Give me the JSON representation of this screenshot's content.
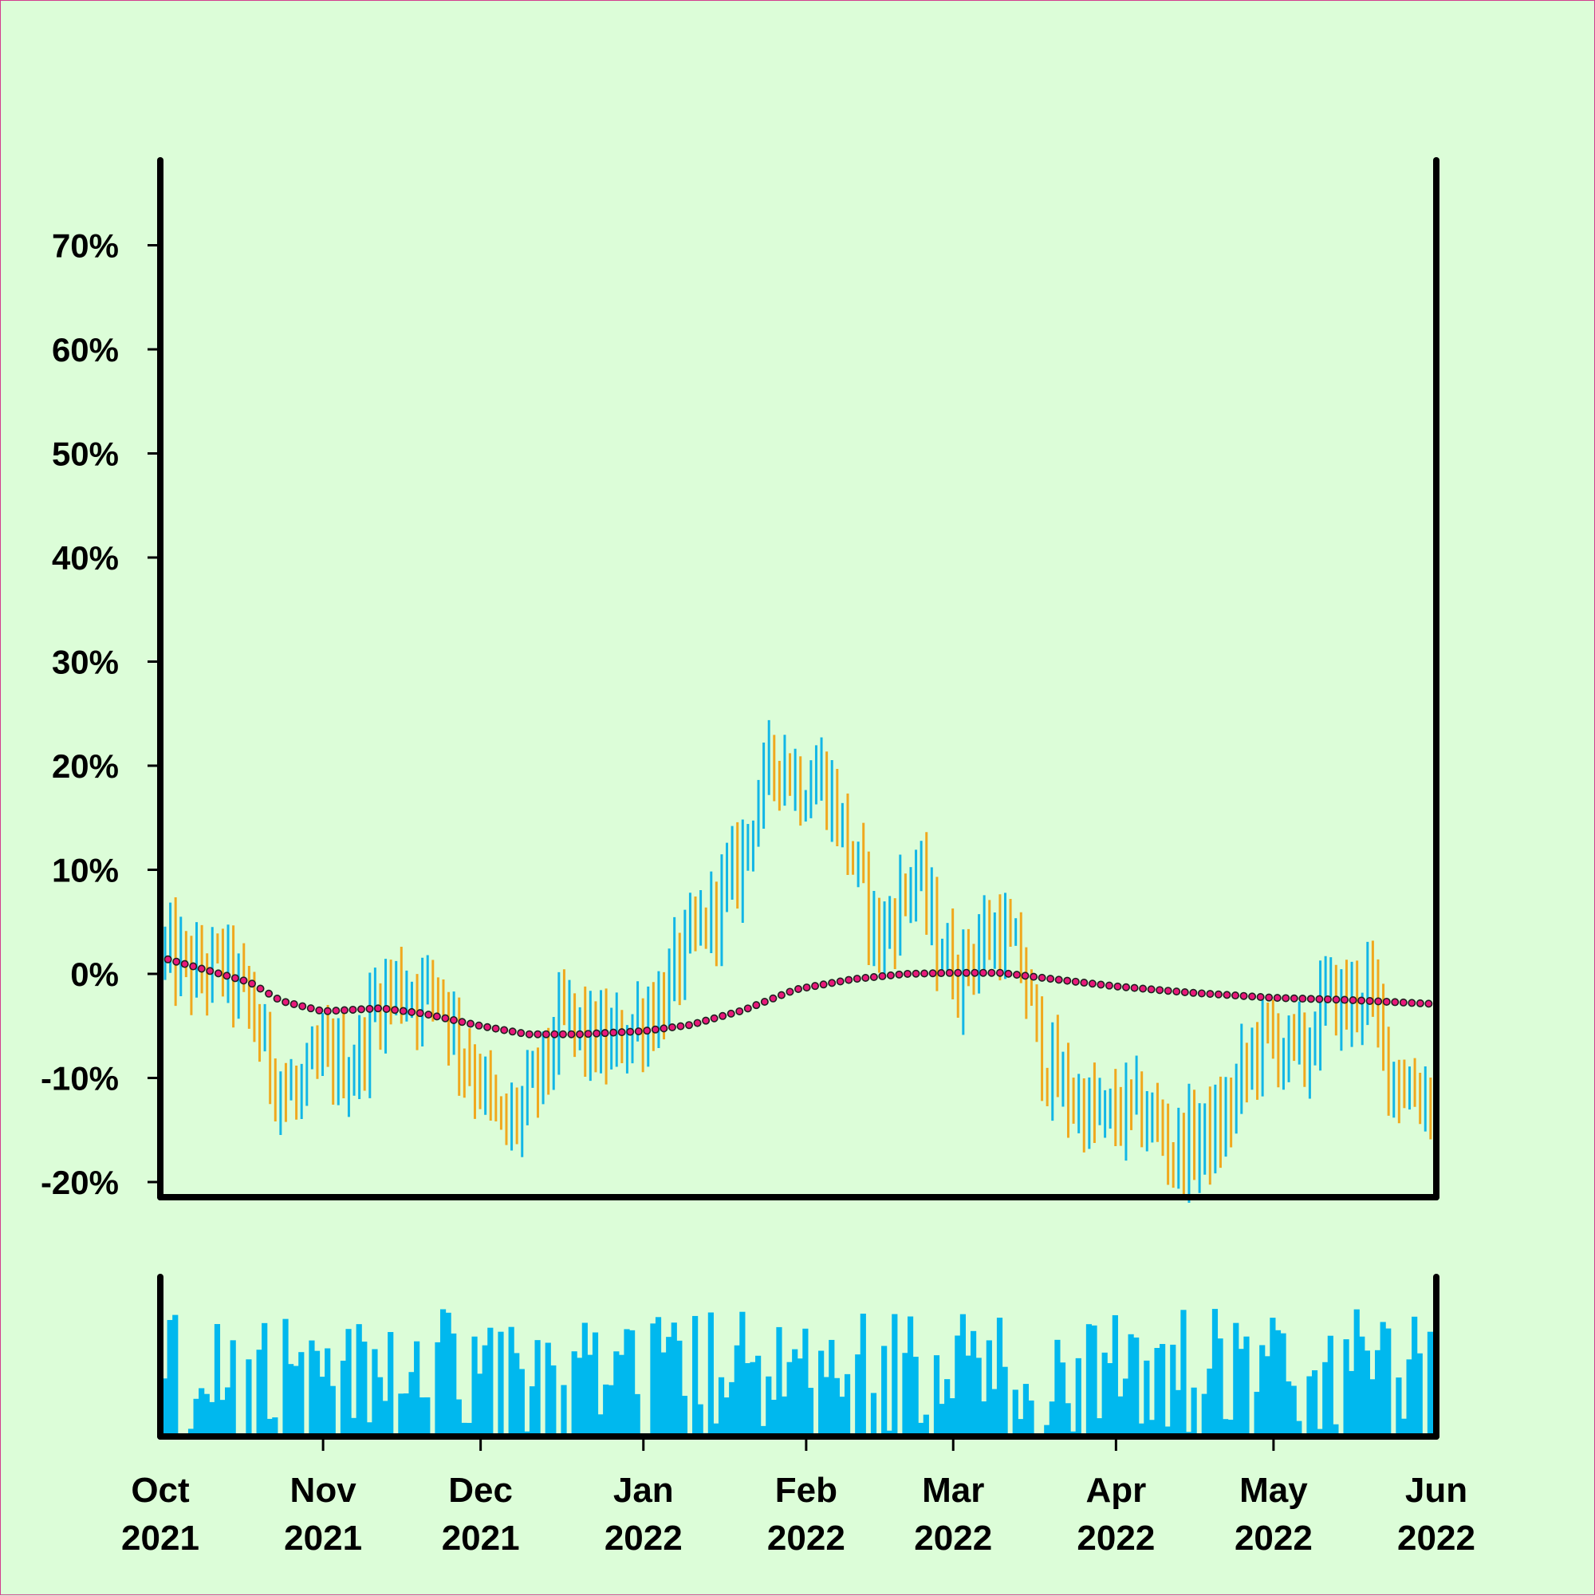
{
  "chart_data": {
    "type": "ohlc",
    "title": "",
    "xlabel": "",
    "ylabel": "",
    "x_range": [
      "2021-10-01",
      "2022-06-01"
    ],
    "ylim": [
      -20,
      78
    ],
    "y_ticks": [
      {
        "value": 70,
        "label": "70%"
      },
      {
        "value": 60,
        "label": "60%"
      },
      {
        "value": 50,
        "label": "50%"
      },
      {
        "value": 40,
        "label": "40%"
      },
      {
        "value": 30,
        "label": "30%"
      },
      {
        "value": 20,
        "label": "20%"
      },
      {
        "value": 10,
        "label": "10%"
      },
      {
        "value": 0,
        "label": "0%"
      },
      {
        "value": -10,
        "label": "-10%"
      },
      {
        "value": -20,
        "label": "-20%"
      }
    ],
    "x_ticks": [
      {
        "date": "2021-10-01",
        "month": "Oct",
        "year": "2021"
      },
      {
        "date": "2021-11-01",
        "month": "Nov",
        "year": "2021"
      },
      {
        "date": "2021-12-01",
        "month": "Dec",
        "year": "2021"
      },
      {
        "date": "2022-01-01",
        "month": "Jan",
        "year": "2022"
      },
      {
        "date": "2022-02-01",
        "month": "Feb",
        "year": "2022"
      },
      {
        "date": "2022-03-01",
        "month": "Mar",
        "year": "2022"
      },
      {
        "date": "2022-04-01",
        "month": "Apr",
        "year": "2022"
      },
      {
        "date": "2022-05-01",
        "month": "May",
        "year": "2022"
      },
      {
        "date": "2022-06-01",
        "month": "Jun",
        "year": "2022"
      }
    ],
    "colors": {
      "up": "#12b6e6",
      "down": "#f0a81e",
      "trend_fill": "#e8187a",
      "trend_edge": "#202020",
      "volume": "#00b8ee",
      "background": "#dcfdd8",
      "axes": "#000000"
    },
    "price_path": [
      [
        "2021-10-01",
        2
      ],
      [
        "2021-10-07",
        0
      ],
      [
        "2021-10-12",
        1
      ],
      [
        "2021-10-17",
        -3
      ],
      [
        "2021-10-22",
        -10
      ],
      [
        "2021-10-26",
        -12
      ],
      [
        "2021-10-31",
        -8
      ],
      [
        "2021-11-06",
        -9
      ],
      [
        "2021-11-10",
        -3
      ],
      [
        "2021-11-14",
        -1
      ],
      [
        "2021-11-18",
        -2
      ],
      [
        "2021-11-22",
        -1
      ],
      [
        "2021-11-26",
        -7
      ],
      [
        "2021-11-30",
        -10
      ],
      [
        "2021-12-04",
        -15
      ],
      [
        "2021-12-08",
        -13
      ],
      [
        "2021-12-12",
        -9
      ],
      [
        "2021-12-16",
        -4
      ],
      [
        "2021-12-20",
        -6
      ],
      [
        "2021-12-25",
        -7
      ],
      [
        "2021-12-29",
        -5
      ],
      [
        "2022-01-03",
        -3
      ],
      [
        "2022-01-08",
        2
      ],
      [
        "2022-01-12",
        5
      ],
      [
        "2022-01-18",
        10
      ],
      [
        "2022-01-22",
        17
      ],
      [
        "2022-01-26",
        21
      ],
      [
        "2022-01-30",
        18
      ],
      [
        "2022-02-03",
        19
      ],
      [
        "2022-02-07",
        14
      ],
      [
        "2022-02-11",
        8
      ],
      [
        "2022-02-14",
        3
      ],
      [
        "2022-02-18",
        7
      ],
      [
        "2022-02-21",
        10
      ],
      [
        "2022-02-25",
        3
      ],
      [
        "2022-03-01",
        0
      ],
      [
        "2022-03-05",
        3
      ],
      [
        "2022-03-09",
        4
      ],
      [
        "2022-03-13",
        1
      ],
      [
        "2022-03-17",
        -8
      ],
      [
        "2022-03-21",
        -11
      ],
      [
        "2022-03-25",
        -13
      ],
      [
        "2022-03-29",
        -14
      ],
      [
        "2022-04-03",
        -13
      ],
      [
        "2022-04-07",
        -14
      ],
      [
        "2022-04-11",
        -17
      ],
      [
        "2022-04-15",
        -16
      ],
      [
        "2022-04-20",
        -15
      ],
      [
        "2022-04-24",
        -10
      ],
      [
        "2022-04-28",
        -6
      ],
      [
        "2022-05-02",
        -7
      ],
      [
        "2022-05-06",
        -8
      ],
      [
        "2022-05-10",
        -2
      ],
      [
        "2022-05-14",
        -3
      ],
      [
        "2022-05-18",
        -1
      ],
      [
        "2022-05-22",
        -9
      ],
      [
        "2022-05-26",
        -11
      ],
      [
        "2022-05-31",
        -12
      ]
    ],
    "trend_path": [
      [
        "2021-10-01",
        1.6
      ],
      [
        "2021-10-11",
        0.2
      ],
      [
        "2021-10-18",
        -0.8
      ],
      [
        "2021-10-24",
        -2.6
      ],
      [
        "2021-11-01",
        -3.6
      ],
      [
        "2021-11-12",
        -3.3
      ],
      [
        "2021-11-20",
        -3.8
      ],
      [
        "2021-12-01",
        -5.0
      ],
      [
        "2021-12-10",
        -5.8
      ],
      [
        "2021-12-20",
        -5.8
      ],
      [
        "2022-01-01",
        -5.5
      ],
      [
        "2022-01-10",
        -4.9
      ],
      [
        "2022-01-20",
        -3.5
      ],
      [
        "2022-01-30",
        -1.5
      ],
      [
        "2022-02-10",
        -0.5
      ],
      [
        "2022-02-20",
        0.0
      ],
      [
        "2022-03-01",
        0.1
      ],
      [
        "2022-03-10",
        0.1
      ],
      [
        "2022-03-20",
        -0.5
      ],
      [
        "2022-04-01",
        -1.2
      ],
      [
        "2022-04-15",
        -1.8
      ],
      [
        "2022-05-01",
        -2.3
      ],
      [
        "2022-05-15",
        -2.5
      ],
      [
        "2022-06-01",
        -2.9
      ]
    ]
  }
}
